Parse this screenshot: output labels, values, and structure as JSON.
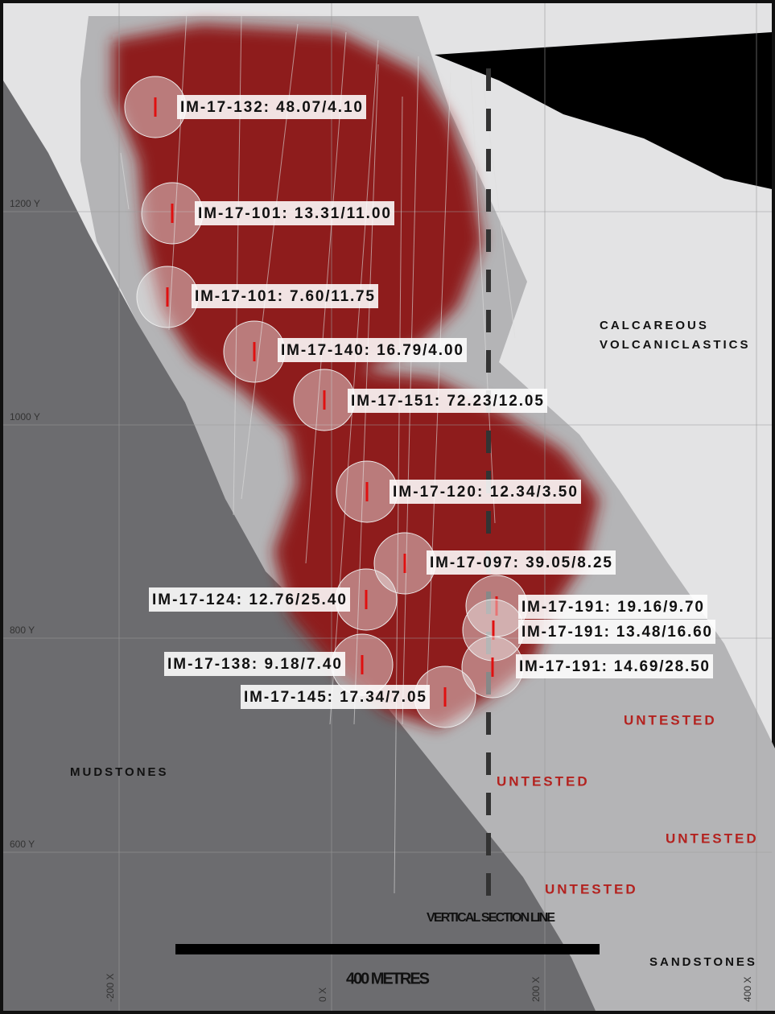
{
  "grid": {
    "y_labels": [
      "1200 Y",
      "1000 Y",
      "800 Y",
      "600 Y"
    ],
    "x_labels": [
      "-200 X",
      "0 X",
      "200 X",
      "400 X"
    ]
  },
  "intercepts": [
    "IM-17-132: 48.07/4.10",
    "IM-17-101: 13.31/11.00",
    "IM-17-101: 7.60/11.75",
    "IM-17-140: 16.79/4.00",
    "IM-17-151: 72.23/12.05",
    "IM-17-120: 12.34/3.50",
    "IM-17-097: 39.05/8.25",
    "IM-17-124: 12.76/25.40",
    "IM-17-191: 19.16/9.70",
    "IM-17-191: 13.48/16.60",
    "IM-17-191: 14.69/28.50",
    "IM-17-138: 9.18/7.40",
    "IM-17-145: 17.34/7.05"
  ],
  "units": {
    "calcareous": [
      "CALCAREOUS",
      "VOLCANICLASTICS"
    ],
    "mudstones": "MUDSTONES",
    "sandstones": "SANDSTONES"
  },
  "untested": [
    "UNTESTED",
    "UNTESTED",
    "UNTESTED",
    "UNTESTED"
  ],
  "section_line": "VERTICAL SECTION LINE",
  "scale_bar": "400 METRES"
}
